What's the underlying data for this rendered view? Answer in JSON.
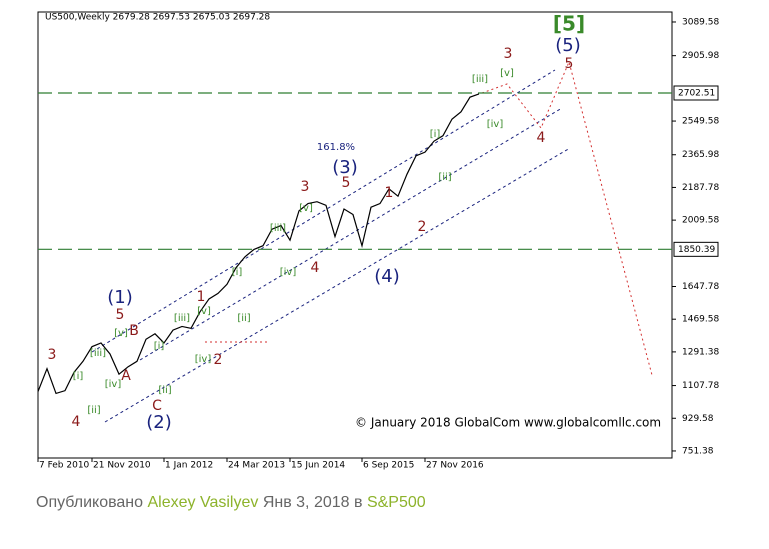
{
  "header": "US500,Weekly  2679.28 2697.53 2675.03 2697.28",
  "chart_data": {
    "type": "line",
    "categories": [
      "7 Feb 2010",
      null,
      null,
      null,
      null,
      null,
      "21 Nov 2010",
      null,
      null,
      null,
      null,
      null,
      null,
      null,
      "1 Jan 2012",
      null,
      null,
      null,
      null,
      null,
      null,
      "24 Mar 2013",
      null,
      null,
      null,
      null,
      null,
      null,
      "15 Jun 2014",
      null,
      null,
      null,
      null,
      null,
      null,
      null,
      "6 Sep 2015",
      null,
      null,
      null,
      null,
      null,
      null,
      "27 Nov 2016",
      null,
      null,
      null,
      null,
      null,
      null
    ],
    "values": [
      1075,
      1200,
      1065,
      1080,
      1180,
      1240,
      1320,
      1340,
      1280,
      1170,
      1210,
      1240,
      1360,
      1390,
      1340,
      1410,
      1430,
      1420,
      1510,
      1580,
      1610,
      1660,
      1750,
      1810,
      1850,
      1870,
      1960,
      1980,
      1900,
      2060,
      2100,
      2110,
      2090,
      1920,
      2070,
      2040,
      1870,
      2080,
      2100,
      2180,
      2140,
      2260,
      2360,
      2380,
      2440,
      2470,
      2560,
      2600,
      2680,
      2697.28
    ],
    "color": "#000000",
    "ylim": [
      713,
      3144
    ],
    "yticks": [
      3089.58,
      2905.98,
      2549.58,
      2365.98,
      2187.78,
      2009.58,
      1647.78,
      1469.58,
      1291.38,
      1107.78,
      929.58,
      751.38
    ],
    "levels": [
      {
        "value": 2702.51,
        "color": "#2e7d32"
      },
      {
        "value": 1850.39,
        "color": "#2e7d32"
      }
    ],
    "annotations": [
      {
        "text": "3",
        "color": "#8b1a1a"
      },
      {
        "text": "4",
        "color": "#8b1a1a"
      },
      {
        "text": "[i]",
        "color": "#3a8a2a"
      },
      {
        "text": "[ii]",
        "color": "#3a8a2a"
      },
      {
        "text": "[iii]",
        "color": "#3a8a2a"
      },
      {
        "text": "[iv]",
        "color": "#3a8a2a"
      },
      {
        "text": "[v]",
        "color": "#3a8a2a"
      },
      {
        "text": "5",
        "color": "#8b1a1a"
      },
      {
        "text": "(1)",
        "color": "#1a237e"
      },
      {
        "text": "A",
        "color": "#8b1a1a"
      },
      {
        "text": "B",
        "color": "#8b1a1a"
      },
      {
        "text": "C",
        "color": "#8b1a1a"
      },
      {
        "text": "(2)",
        "color": "#1a237e"
      },
      {
        "text": "[i]",
        "color": "#3a8a2a"
      },
      {
        "text": "[ii]",
        "color": "#3a8a2a"
      },
      {
        "text": "[iii]",
        "color": "#3a8a2a"
      },
      {
        "text": "[iv]",
        "color": "#3a8a2a"
      },
      {
        "text": "[v]",
        "color": "#3a8a2a"
      },
      {
        "text": "1",
        "color": "#8b1a1a"
      },
      {
        "text": "2",
        "color": "#8b1a1a"
      },
      {
        "text": "[i]",
        "color": "#3a8a2a"
      },
      {
        "text": "[ii]",
        "color": "#3a8a2a"
      },
      {
        "text": "[iii]",
        "color": "#3a8a2a"
      },
      {
        "text": "[iv]",
        "color": "#3a8a2a"
      },
      {
        "text": "[v]",
        "color": "#3a8a2a"
      },
      {
        "text": "3",
        "color": "#8b1a1a"
      },
      {
        "text": "4",
        "color": "#8b1a1a"
      },
      {
        "text": "5",
        "color": "#8b1a1a"
      },
      {
        "text": "(3)",
        "color": "#1a237e"
      },
      {
        "text": "161.8%",
        "color": "#1a237e"
      },
      {
        "text": "(4)",
        "color": "#1a237e"
      },
      {
        "text": "1",
        "color": "#8b1a1a"
      },
      {
        "text": "2",
        "color": "#8b1a1a"
      },
      {
        "text": "[i]",
        "color": "#3a8a2a"
      },
      {
        "text": "[ii]",
        "color": "#3a8a2a"
      },
      {
        "text": "[iii]",
        "color": "#3a8a2a"
      },
      {
        "text": "[iv]",
        "color": "#3a8a2a"
      },
      {
        "text": "[v]",
        "color": "#3a8a2a"
      },
      {
        "text": "3",
        "color": "#8b1a1a"
      },
      {
        "text": "4",
        "color": "#8b1a1a"
      },
      {
        "text": "5",
        "color": "#8b1a1a"
      },
      {
        "text": "(5)",
        "color": "#1a237e"
      },
      {
        "text": "[5]",
        "color": "#3a8a2a"
      }
    ],
    "copyright": "© January 2018 GlobalCom www.globalcomllc.com"
  },
  "footer": {
    "prefix": "Опубликовано",
    "author": "Alexey Vasilyev",
    "date": "Янв 3, 2018 в",
    "symbol": "S&P500"
  }
}
